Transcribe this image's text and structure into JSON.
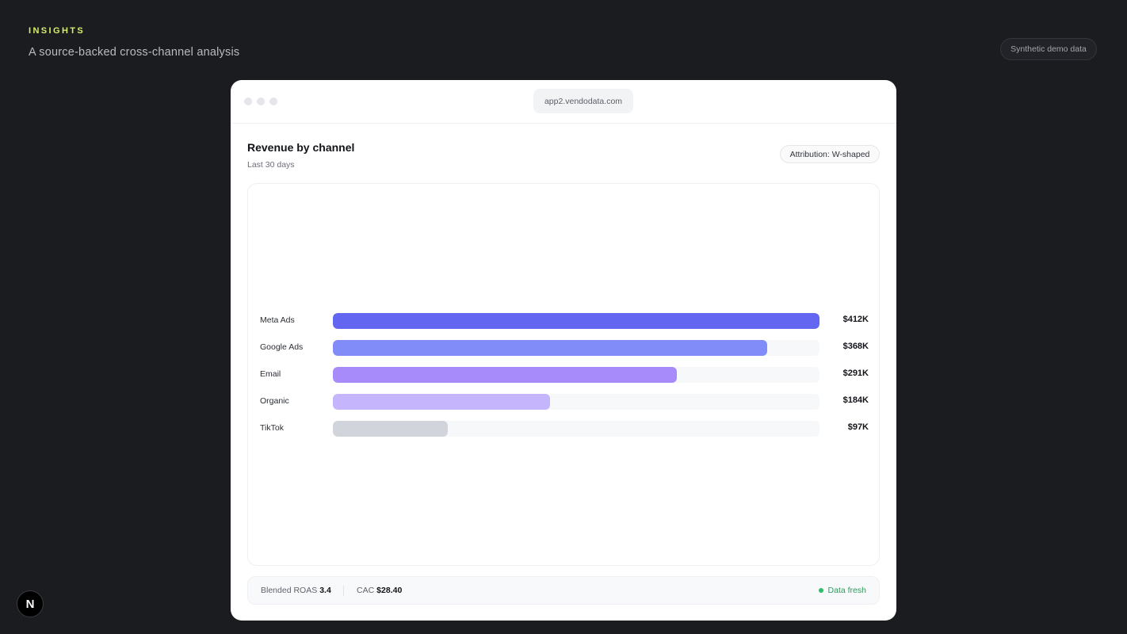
{
  "header": {
    "kicker": "INSIGHTS",
    "subtitle": "A source-backed cross-channel analysis",
    "demo_badge": "Synthetic demo data"
  },
  "window": {
    "url": "app2.vendodata.com"
  },
  "card": {
    "title": "Revenue by channel",
    "subtitle": "Last 30 days",
    "attribution": "Attribution: W-shaped"
  },
  "chart_data": {
    "type": "bar",
    "orientation": "horizontal",
    "categories": [
      "Meta Ads",
      "Google Ads",
      "Email",
      "Organic",
      "TikTok"
    ],
    "values": [
      412,
      368,
      291,
      184,
      97
    ],
    "value_labels": [
      "$412K",
      "$368K",
      "$291K",
      "$184K",
      "$97K"
    ],
    "colors": [
      "#6366f1",
      "#818cf8",
      "#a78bfa",
      "#c4b5fd",
      "#d1d5db"
    ],
    "xlim": [
      0,
      412
    ],
    "grid": false,
    "legend": "none"
  },
  "footer": {
    "roas_label": "Blended ROAS",
    "roas_value": "3.4",
    "cac_label": "CAC",
    "cac_value": "$28.40",
    "status": "Data fresh",
    "status_color": "#2fbf6b"
  },
  "logo": {
    "letter": "N",
    "icon": "n-logo-icon"
  }
}
